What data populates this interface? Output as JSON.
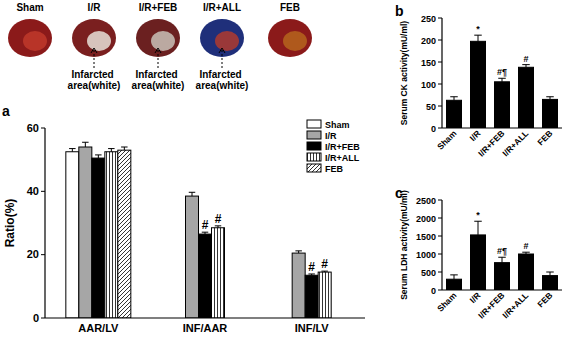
{
  "hearts": {
    "labels": [
      "Sham",
      "I/R",
      "I/R+FEB",
      "I/R+ALL",
      "FEB"
    ],
    "notes": [
      "Infarcted area(white)",
      "Infarcted area(white)",
      "Infarcted area(white)"
    ]
  },
  "chart_data": [
    {
      "type": "bar",
      "title": "a",
      "y_label": "Ratio(%)",
      "categories": [
        "AAR/LV",
        "INF/AAR",
        "INF/LV"
      ],
      "series": [
        {
          "name": "Sham",
          "color": "#ffffff",
          "values": [
            52.5,
            null,
            null
          ],
          "errors": [
            1,
            null,
            null
          ],
          "signif": [
            null,
            null,
            null
          ]
        },
        {
          "name": "I/R",
          "color": "#a6a6a6",
          "values": [
            54,
            38.5,
            20.5
          ],
          "errors": [
            1.5,
            1.2,
            0.7
          ],
          "signif": [
            null,
            null,
            null
          ]
        },
        {
          "name": "I/R+FEB",
          "color": "#000000",
          "values": [
            50.5,
            26.5,
            13.5
          ],
          "errors": [
            1,
            0.6,
            0.4
          ],
          "signif": [
            null,
            "#",
            "#"
          ]
        },
        {
          "name": "I/R+ALL",
          "color": "#ffffff",
          "values": [
            52.5,
            28.5,
            14.5
          ],
          "errors": [
            1,
            0.6,
            0.3
          ],
          "signif": [
            null,
            "#",
            "#"
          ]
        },
        {
          "name": "FEB",
          "color": "#ffffff",
          "values": [
            53,
            null,
            null
          ],
          "errors": [
            1,
            null,
            null
          ],
          "signif": [
            null,
            null,
            null
          ]
        }
      ],
      "ylim": [
        0,
        60
      ],
      "yticks": [
        0,
        20,
        40,
        60
      ],
      "legend": "top-right"
    },
    {
      "type": "bar",
      "title": "b",
      "y_label": "Serum CK activity(mU/ml)",
      "categories": [
        "Sham",
        "I/R",
        "I/R+FEB",
        "I/R+ALL",
        "FEB"
      ],
      "values": [
        63,
        197,
        105,
        138,
        65
      ],
      "errors": [
        8,
        14,
        8,
        6,
        6
      ],
      "signif": [
        null,
        "*",
        "#¶",
        "#",
        null
      ],
      "color": "#000000",
      "ylim": [
        0,
        250
      ],
      "yticks": [
        0,
        50,
        100,
        150,
        200,
        250
      ]
    },
    {
      "type": "bar",
      "title": "c",
      "y_label": "Serum LDH activity(mU/ml)",
      "categories": [
        "Sham",
        "I/R",
        "I/R+FEB",
        "I/R+ALL",
        "FEB"
      ],
      "values": [
        300,
        1530,
        760,
        1000,
        400
      ],
      "errors": [
        120,
        380,
        150,
        50,
        100
      ],
      "signif": [
        null,
        "*",
        "#¶",
        "#",
        null
      ],
      "color": "#000000",
      "ylim": [
        0,
        2500
      ],
      "yticks": [
        0,
        500,
        1000,
        1500,
        2000,
        2500
      ]
    }
  ]
}
